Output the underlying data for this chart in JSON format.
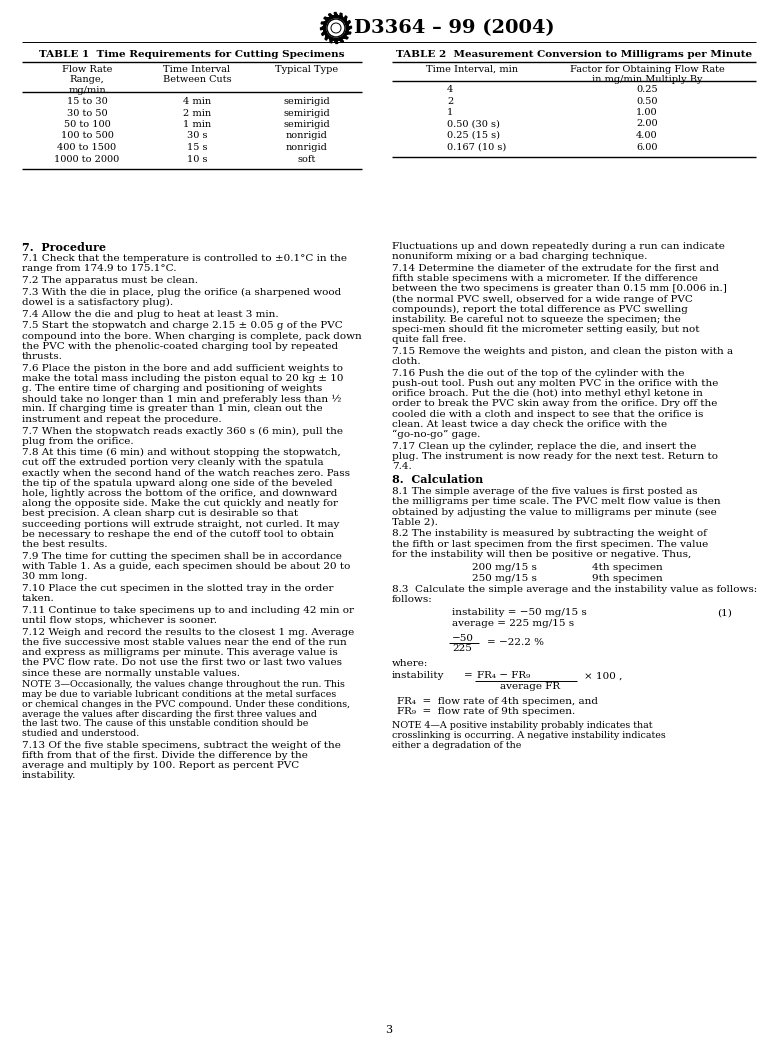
{
  "title": "D3364 – 99 (2004)",
  "page_number": "3",
  "background_color": "#ffffff",
  "table1_title": "TABLE 1  Time Requirements for Cutting Specimens",
  "table1_col1_header": "Flow Rate\nRange,\nmg/min",
  "table1_col2_header": "Time Interval\nBetween Cuts",
  "table1_col3_header": "Typical Type",
  "table1_rows": [
    [
      "15 to 30",
      "4 min",
      "semirigid"
    ],
    [
      "30 to 50",
      "2 min",
      "semirigid"
    ],
    [
      "50 to 100",
      "1 min",
      "semirigid"
    ],
    [
      "100 to 500",
      "30 s",
      "nonrigid"
    ],
    [
      "400 to 1500",
      "15 s",
      "nonrigid"
    ],
    [
      "1000 to 2000",
      "10 s",
      "soft"
    ]
  ],
  "table2_title": "TABLE 2  Measurement Conversion to Milligrams per Minute",
  "table2_col1_header": "Time Interval, min",
  "table2_col2_header": "Factor for Obtaining Flow Rate\nin mg/min Multiply By",
  "table2_rows": [
    [
      "4",
      "0.25"
    ],
    [
      "2",
      "0.50"
    ],
    [
      "1",
      "1.00"
    ],
    [
      "0.50 (30 s)",
      "2.00"
    ],
    [
      "0.25 (15 s)",
      "4.00"
    ],
    [
      "0.167 (10 s)",
      "6.00"
    ]
  ],
  "left_paragraphs": [
    {
      "indent": false,
      "bold_prefix": "7.  Procedure",
      "text": ""
    },
    {
      "indent": true,
      "bold_prefix": "",
      "text": "7.1  Check that the temperature is controlled to ±0.1°C in the range from 174.9 to 175.1°C."
    },
    {
      "indent": true,
      "bold_prefix": "",
      "text": "7.2  The apparatus must be clean."
    },
    {
      "indent": true,
      "bold_prefix": "",
      "text": "7.3  With the die in place, plug the orifice (a sharpened wood dowel is a satisfactory plug)."
    },
    {
      "indent": true,
      "bold_prefix": "",
      "text": "7.4  Allow the die and plug to heat at least 3 min."
    },
    {
      "indent": true,
      "bold_prefix": "",
      "text": "7.5  Start the stopwatch and charge 2.15 ± 0.05 g of the PVC compound into the bore. When charging is complete, pack down the PVC with the phenolic-coated charging tool by repeated thrusts."
    },
    {
      "indent": true,
      "bold_prefix": "",
      "text": "7.6  Place the piston in the bore and add sufficient weights to make the total mass including the piston equal to 20 kg ± 10 g. The entire time of charging and positioning of weights should take no longer than 1 min and preferably less than ½ min. If charging time is greater than 1 min, clean out the instrument and repeat the procedure."
    },
    {
      "indent": true,
      "bold_prefix": "",
      "text": "7.7  When the stopwatch reads exactly 360 s (6 min), pull the plug from the orifice."
    },
    {
      "indent": true,
      "bold_prefix": "",
      "text": "7.8  At this time (6 min) and without stopping the stopwatch, cut off the extruded portion very cleanly with the spatula exactly when the second hand of the watch reaches zero. Pass the tip of the spatula upward along one side of the beveled hole, lightly across the bottom of the orifice, and downward along the opposite side. Make the cut quickly and neatly for best precision. A clean sharp cut is desirable so that succeeding portions will extrude straight, not curled. It may be necessary to reshape the end of the cutoff tool to obtain the best results."
    },
    {
      "indent": true,
      "bold_prefix": "",
      "text": "7.9  The time for cutting the specimen shall be in accordance with Table 1. As a guide, each specimen should be about 20 to 30 mm long."
    },
    {
      "indent": true,
      "bold_prefix": "",
      "text": "7.10  Place the cut specimen in the slotted tray in the order taken."
    },
    {
      "indent": true,
      "bold_prefix": "",
      "text": "7.11  Continue to take specimens up to and including 42 min or until flow stops, whichever is sooner."
    },
    {
      "indent": true,
      "bold_prefix": "",
      "text": "7.12  Weigh and record the results to the closest 1 mg. Average the five successive most stable values near the end of the run and express as milligrams per minute. This average value is the PVC flow rate. Do not use the first two or last two values since these are normally unstable values."
    },
    {
      "indent": false,
      "bold_prefix": "",
      "note": true,
      "text": "NOTE 3—Occasionally, the values change throughout the run. This may be due to variable lubricant conditions at the metal surfaces or chemical changes in the PVC compound. Under these conditions, average the values after discarding the first three values and the last two. The cause of this unstable condition should be studied and understood."
    },
    {
      "indent": true,
      "bold_prefix": "",
      "text": "7.13  Of the five stable specimens, subtract the weight of the fifth from that of the first. Divide the difference by the average and multiply by 100. Report as percent PVC instability."
    }
  ],
  "right_paragraphs": [
    {
      "indent": false,
      "text": "Fluctuations up and down repeatedly during a run can indicate nonuniform mixing or a bad charging technique."
    },
    {
      "indent": true,
      "text": "7.14  Determine the diameter of the extrudate for the first and fifth stable specimens with a micrometer. If the difference between the two specimens is greater than 0.15 mm [0.006 in.] (the normal PVC swell, observed for a wide range of PVC compounds), report the total difference as PVC swelling instability. Be careful not to squeeze the specimen; the speci-men should fit the micrometer setting easily, but not quite fall free."
    },
    {
      "indent": true,
      "text": "7.15  Remove the weights and piston, and clean the piston with a cloth."
    },
    {
      "indent": true,
      "text": "7.16  Push the die out of the top of the cylinder with the push-out tool. Push out any molten PVC in the orifice with the orifice broach. Put the die (hot) into methyl ethyl ketone in order to break the PVC skin away from the orifice. Dry off the cooled die with a cloth and inspect to see that the orifice is clean. At least twice a day check the orifice with the “go-no-go” gage."
    },
    {
      "indent": true,
      "text": "7.17  Clean up the cylinder, replace the die, and insert the plug. The instrument is now ready for the next test. Return to 7.4."
    },
    {
      "indent": false,
      "bold_prefix": "8.  Calculation",
      "text": ""
    },
    {
      "indent": true,
      "text": "8.1  The simple average of the five values is first posted as the milligrams per time scale. The PVC melt flow value is then obtained by adjusting the value to milligrams per minute (see Table 2)."
    },
    {
      "indent": true,
      "text": "8.2  The instability is measured by subtracting the weight of the fifth or last specimen from the first specimen. The value for the instability will then be positive or negative. Thus,"
    },
    {
      "indent": false,
      "text": "NOTE 4—A positive instability probably indicates that crosslinking is occurring. A negative instability indicates either a degradation of the"
    }
  ]
}
